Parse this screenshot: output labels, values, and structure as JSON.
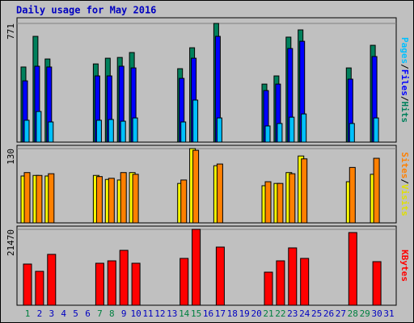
{
  "title": "Daily usage for May 2016",
  "categories": [
    "1",
    "2",
    "3",
    "4",
    "5",
    "6",
    "7",
    "8",
    "9",
    "10",
    "11",
    "12",
    "13",
    "14",
    "15",
    "16",
    "17",
    "18",
    "19",
    "20",
    "21",
    "22",
    "23",
    "24",
    "25",
    "26",
    "27",
    "28",
    "29",
    "30",
    "31"
  ],
  "category_colors": [
    "#008040",
    "#0000c0",
    "#0000c0",
    "#0000c0",
    "#0000c0",
    "#0000c0",
    "#008040",
    "#008040",
    "#0000c0",
    "#0000c0",
    "#0000c0",
    "#0000c0",
    "#0000c0",
    "#008040",
    "#008040",
    "#0000c0",
    "#0000c0",
    "#0000c0",
    "#0000c0",
    "#0000c0",
    "#008040",
    "#008040",
    "#0000c0",
    "#0000c0",
    "#0000c0",
    "#0000c0",
    "#0000c0",
    "#008040",
    "#008040",
    "#0000c0",
    "#0000c0"
  ],
  "legend_separator": "/",
  "chart_data": [
    {
      "type": "bar",
      "ylim": [
        0,
        771
      ],
      "yticks": [
        771
      ],
      "grid": true,
      "series": [
        {
          "name": "Hits",
          "color": "#00805c",
          "values": [
            488,
            687,
            540,
            0,
            0,
            0,
            508,
            545,
            550,
            582,
            0,
            0,
            0,
            477,
            613,
            0,
            771,
            0,
            0,
            0,
            377,
            430,
            682,
            729,
            0,
            0,
            0,
            482,
            0,
            629,
            0
          ]
        },
        {
          "name": "Files",
          "color": "#0000ff",
          "values": [
            398,
            493,
            488,
            0,
            0,
            0,
            430,
            430,
            493,
            482,
            0,
            0,
            0,
            414,
            545,
            0,
            687,
            0,
            0,
            0,
            335,
            377,
            608,
            655,
            0,
            0,
            0,
            409,
            0,
            556,
            0
          ]
        },
        {
          "name": "Pages",
          "color": "#00c0ff",
          "values": [
            142,
            199,
            131,
            0,
            0,
            0,
            142,
            147,
            136,
            157,
            0,
            0,
            0,
            131,
            273,
            0,
            157,
            0,
            0,
            0,
            105,
            121,
            162,
            183,
            0,
            0,
            0,
            121,
            0,
            157,
            0
          ]
        }
      ]
    },
    {
      "type": "bar",
      "ylim": [
        0,
        130
      ],
      "yticks": [
        130
      ],
      "grid": true,
      "series": [
        {
          "name": "Visits",
          "color": "#ffff00",
          "values": [
            82,
            83,
            82,
            0,
            0,
            0,
            83,
            76,
            75,
            88,
            0,
            0,
            0,
            69,
            130,
            0,
            100,
            0,
            0,
            0,
            65,
            69,
            88,
            117,
            0,
            0,
            0,
            72,
            0,
            85,
            0
          ]
        },
        {
          "name": "Sites",
          "color": "#ff8000",
          "values": [
            88,
            83,
            86,
            0,
            0,
            0,
            81,
            78,
            88,
            85,
            0,
            0,
            0,
            75,
            127,
            0,
            103,
            0,
            0,
            0,
            72,
            69,
            86,
            112,
            0,
            0,
            0,
            97,
            0,
            113,
            0
          ]
        }
      ]
    },
    {
      "type": "bar",
      "ylim": [
        0,
        21470
      ],
      "yticks": [
        21470
      ],
      "grid": true,
      "series": [
        {
          "name": "KBytes",
          "color": "#ff0000",
          "values": [
            11650,
            9590,
            14390,
            0,
            0,
            0,
            11880,
            12560,
            15530,
            11880,
            0,
            0,
            0,
            13250,
            21470,
            0,
            16450,
            0,
            0,
            0,
            9360,
            12560,
            16220,
            13250,
            0,
            0,
            0,
            20560,
            0,
            12330,
            0
          ]
        }
      ]
    }
  ]
}
